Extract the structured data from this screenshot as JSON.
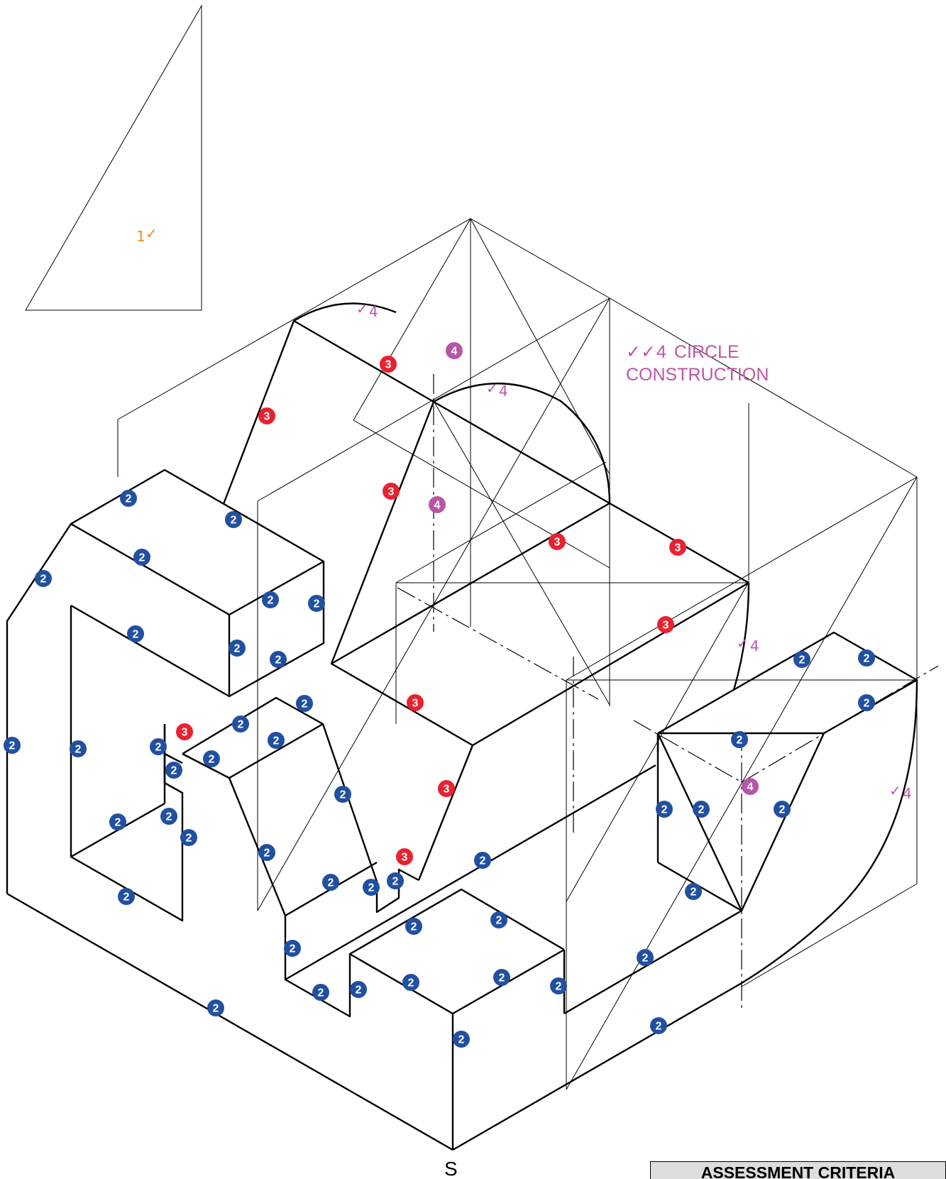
{
  "title_note": {
    "ticks": "✓✓",
    "points": "4",
    "line1": "CIRCLE",
    "line2": "CONSTRUCTION"
  },
  "triangle_mark": {
    "value": "1",
    "tick": "✓"
  },
  "view_label": "S",
  "assessment_criteria_label": "ASSESSMENT CRITERIA",
  "arc_marks": [
    {
      "id": "top-left-arc",
      "tick": "✓",
      "value": "4"
    },
    {
      "id": "top-mid-arc",
      "tick": "✓",
      "value": "4"
    },
    {
      "id": "right-upper-arc",
      "tick": "✓",
      "value": "4"
    },
    {
      "id": "right-lower-arc",
      "tick": "✓",
      "value": "4"
    }
  ],
  "colors": {
    "blue_badge": "#2150a0",
    "red_badge": "#e8222f",
    "magenta_badge": "#b656a6",
    "orange_mark": "#f08a24",
    "magenta_text": "#c054a6"
  },
  "badges": {
    "blue": "2",
    "red": "3",
    "magenta": "4"
  }
}
